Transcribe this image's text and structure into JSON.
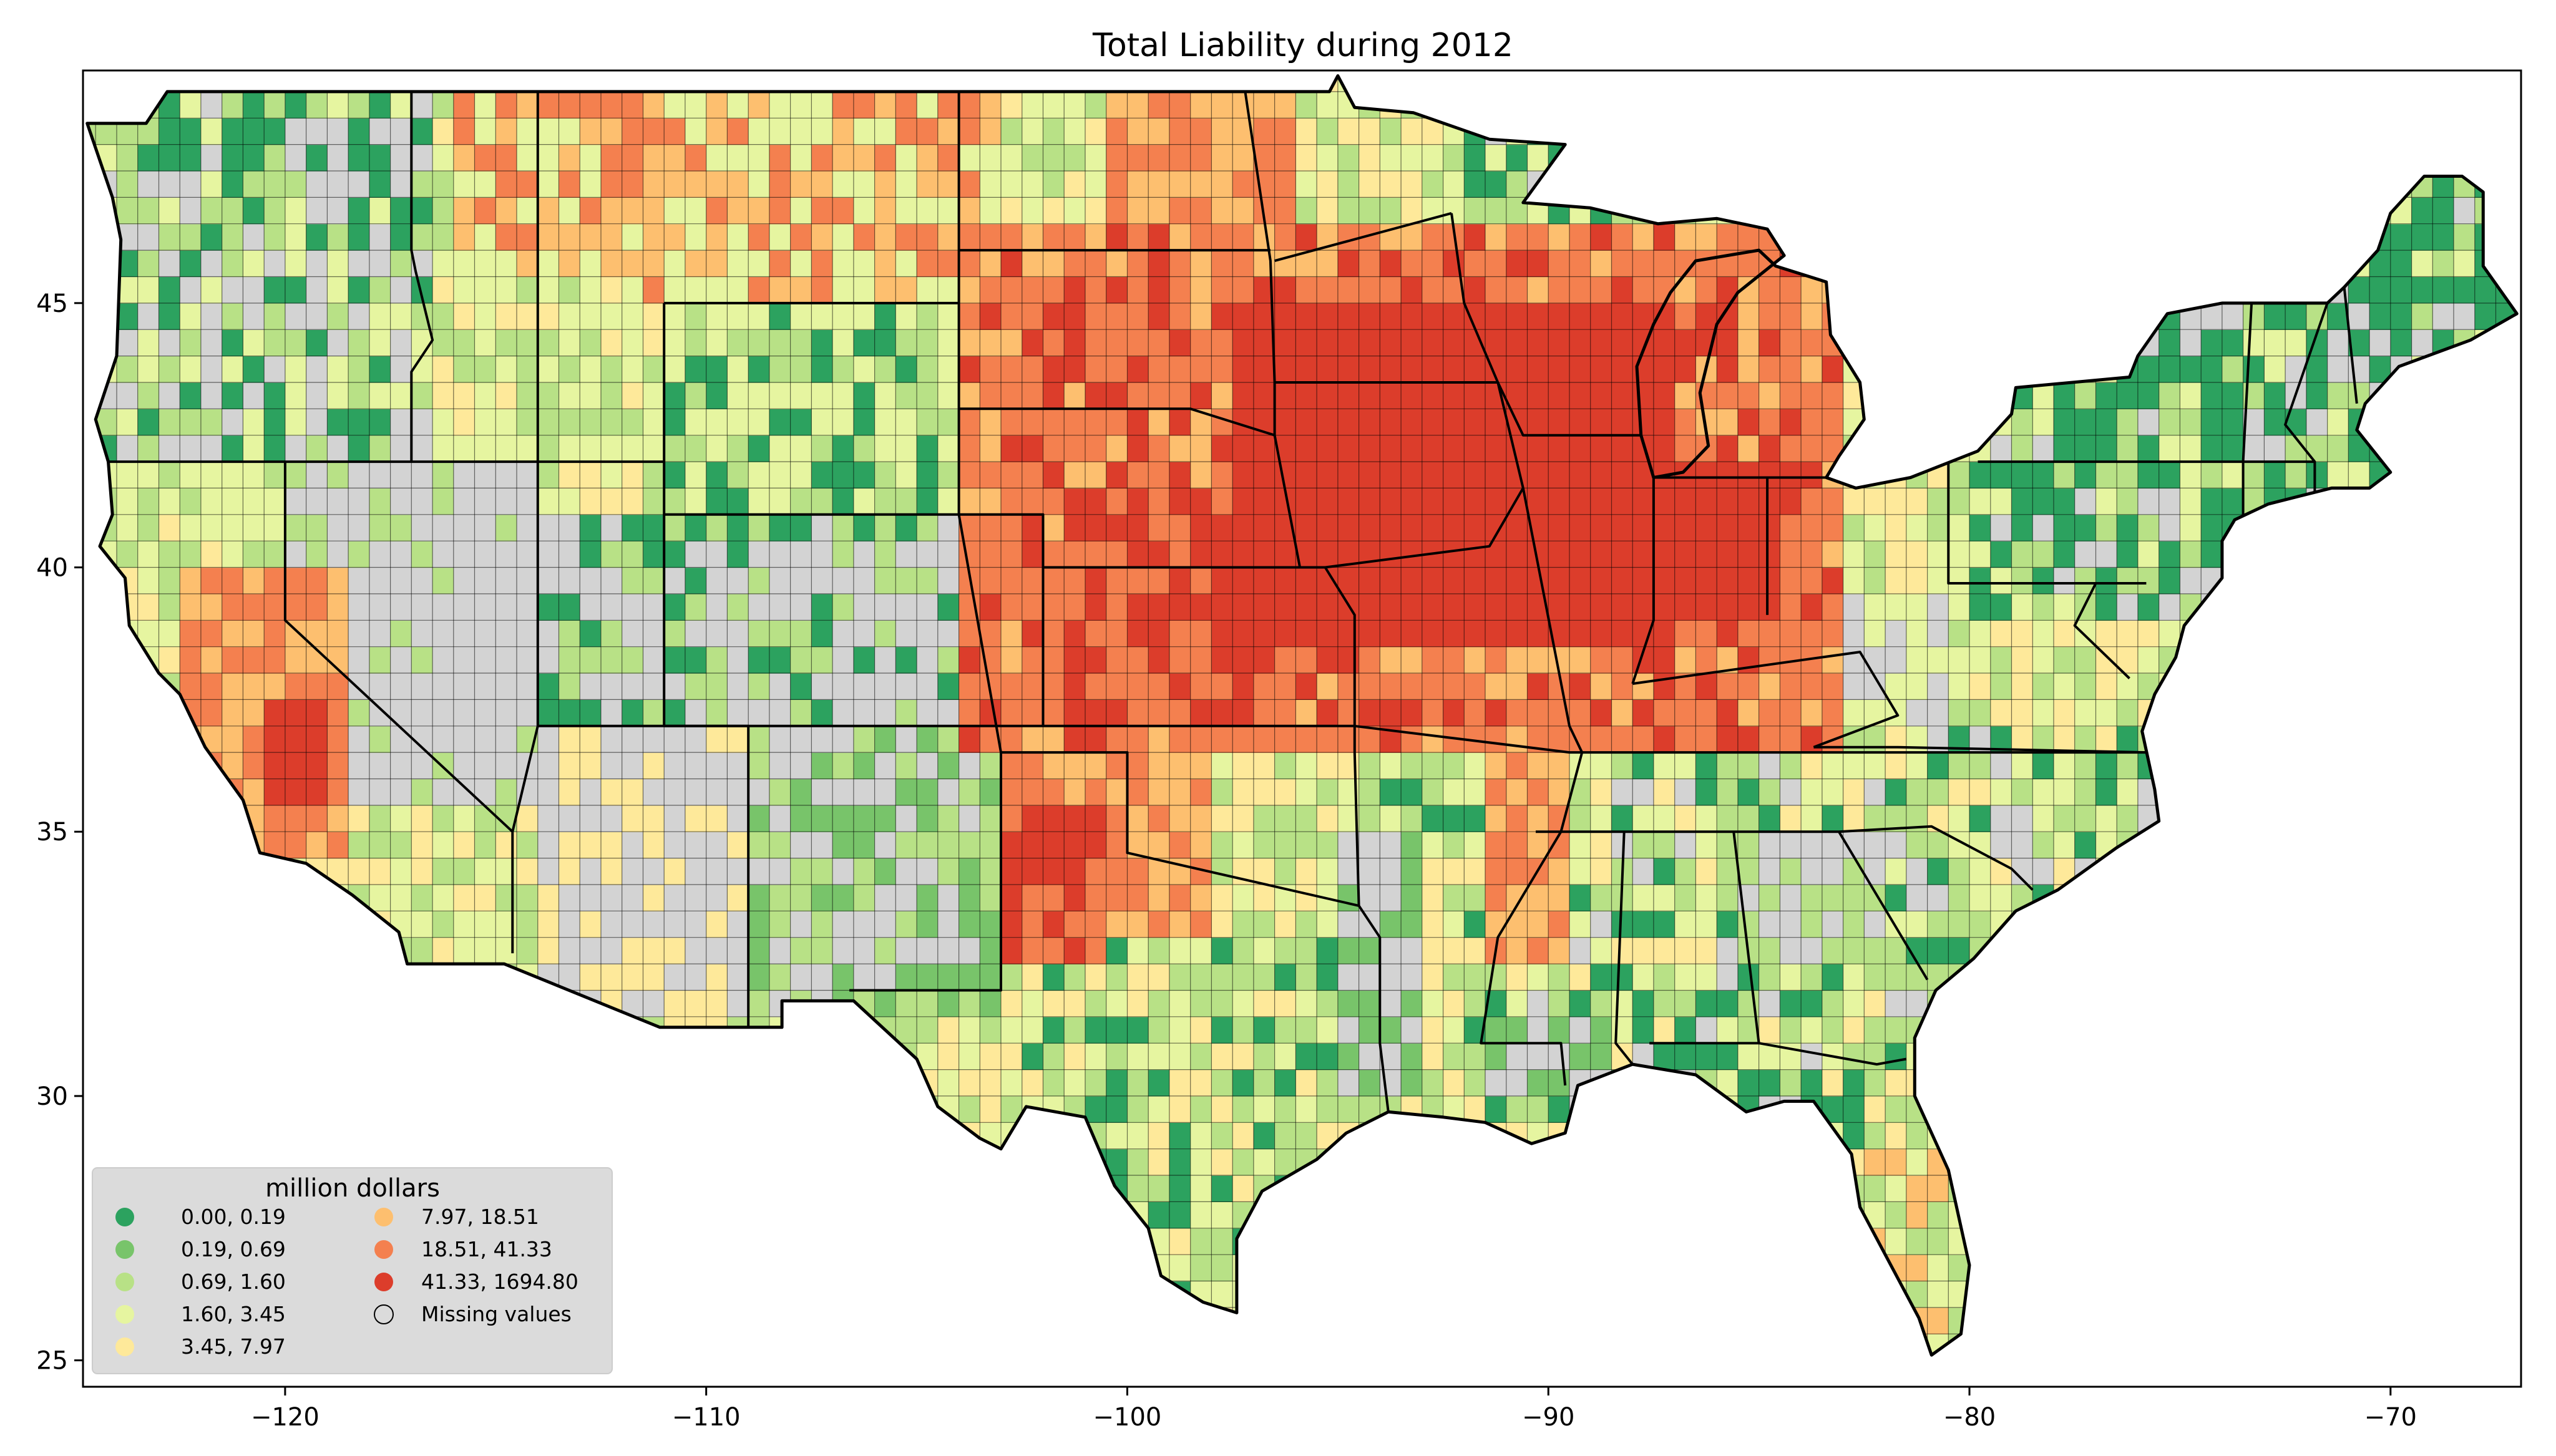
{
  "title": "Total Liability during 2012",
  "colors": {
    "c1": "#2ca25f",
    "c2": "#78c46a",
    "c3": "#b8e186",
    "c4": "#e6f5a0",
    "c5": "#fee99a",
    "c6": "#fdbf6f",
    "c7": "#f4804f",
    "c8": "#dc3d2b",
    "missing": "#d3d3d3"
  },
  "axes": {
    "x_ticks": [
      {
        "value": -120,
        "label": "−120"
      },
      {
        "value": -110,
        "label": "−110"
      },
      {
        "value": -100,
        "label": "−100"
      },
      {
        "value": -90,
        "label": "−90"
      },
      {
        "value": -80,
        "label": "−80"
      },
      {
        "value": -70,
        "label": "−70"
      }
    ],
    "y_ticks": [
      {
        "value": 25,
        "label": "25"
      },
      {
        "value": 30,
        "label": "30"
      },
      {
        "value": 35,
        "label": "35"
      },
      {
        "value": 40,
        "label": "40"
      },
      {
        "value": 45,
        "label": "45"
      }
    ],
    "xlim": [
      -124.8,
      -66.9
    ],
    "ylim": [
      24.5,
      49.4
    ]
  },
  "legend": {
    "title": "million dollars",
    "placement": "lower-left",
    "items": [
      {
        "label": "0.00,    0.19",
        "color_key": "c1"
      },
      {
        "label": "0.19,    0.69",
        "color_key": "c2"
      },
      {
        "label": "0.69,    1.60",
        "color_key": "c3"
      },
      {
        "label": "1.60,    3.45",
        "color_key": "c4"
      },
      {
        "label": "3.45,    7.97",
        "color_key": "c5"
      },
      {
        "label": "7.97,   18.51",
        "color_key": "c6"
      },
      {
        "label": "18.51,   41.33",
        "color_key": "c7"
      },
      {
        "label": "41.33, 1694.80",
        "color_key": "c8"
      },
      {
        "label": "Missing values",
        "color_key": "none"
      }
    ]
  },
  "chart_data": {
    "type": "choropleth",
    "title": "Total Liability during 2012",
    "xlabel": "",
    "ylabel": "",
    "xlim": [
      -124.8,
      -66.9
    ],
    "ylim": [
      24.5,
      49.4
    ],
    "grid": false,
    "legend_placement": "lower-left",
    "value_unit": "million dollars",
    "bins": [
      {
        "range": [
          0.0,
          0.19
        ],
        "color": "#2ca25f"
      },
      {
        "range": [
          0.19,
          0.69
        ],
        "color": "#78c46a"
      },
      {
        "range": [
          0.69,
          1.6
        ],
        "color": "#b8e186"
      },
      {
        "range": [
          1.6,
          3.45
        ],
        "color": "#e6f5a0"
      },
      {
        "range": [
          3.45,
          7.97
        ],
        "color": "#fee99a"
      },
      {
        "range": [
          7.97,
          18.51
        ],
        "color": "#fdbf6f"
      },
      {
        "range": [
          18.51,
          41.33
        ],
        "color": "#f4804f"
      },
      {
        "range": [
          41.33,
          1694.8
        ],
        "color": "#dc3d2b"
      }
    ],
    "missing_color": "#d3d3d3"
  }
}
